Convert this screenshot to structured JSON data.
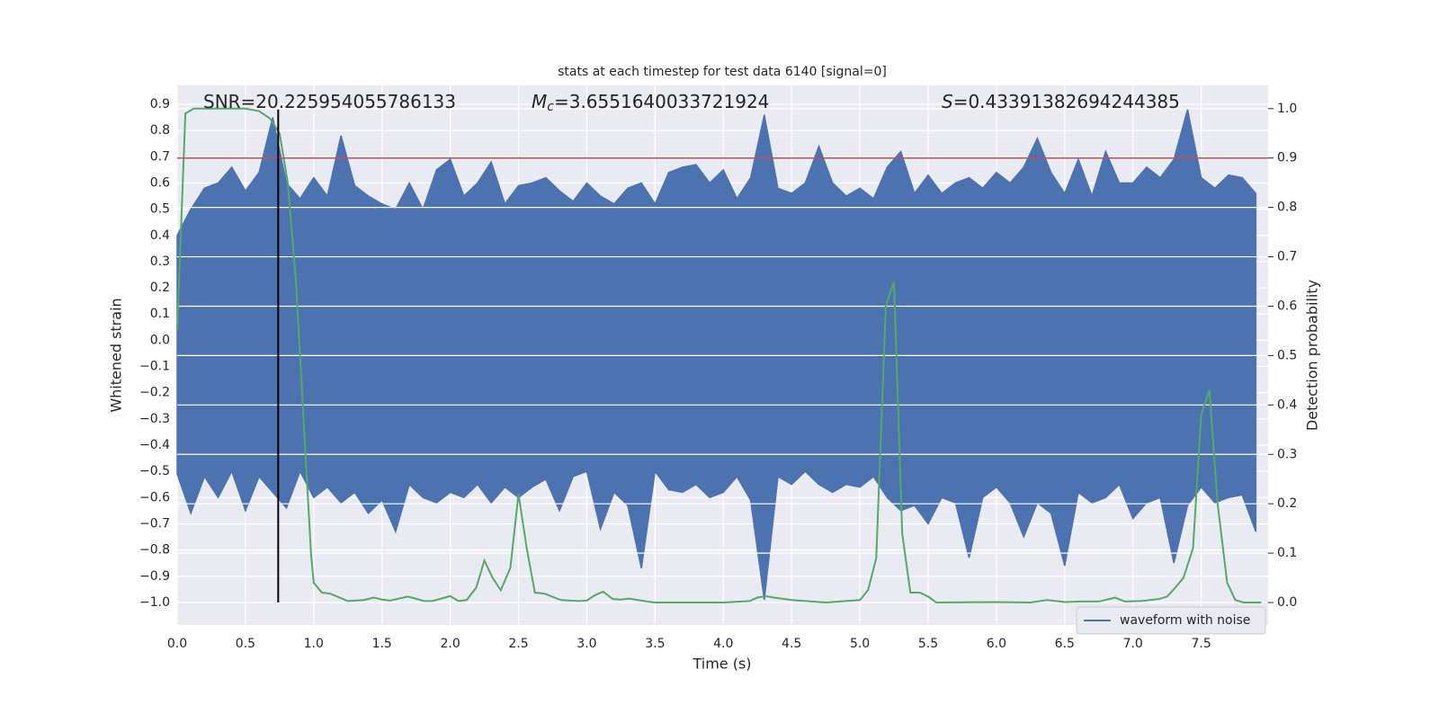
{
  "chart_data": {
    "type": "line",
    "title": "stats at each timestep for test data 6140 [signal=0]",
    "xlabel": "Time (s)",
    "ylabel": "Whitened strain",
    "y2label": "Detection probability",
    "annotations": [
      {
        "text": "SNR=20.225954055786133"
      },
      {
        "symbol": "M",
        "subscript": "c",
        "text": "=3.6551640033721924"
      },
      {
        "symbol": "S",
        "text": "=0.43391382694244385"
      }
    ],
    "xlim": [
      0,
      7.99
    ],
    "ylim": [
      -1.086,
      0.972
    ],
    "y2lim": [
      -0.0455,
      1.047
    ],
    "xticks": [
      {
        "value": 0,
        "label": "0.0"
      },
      0.5,
      {
        "value": 1,
        "label": "1.0"
      },
      1.5,
      {
        "value": 2,
        "label": "2.0"
      },
      2.5,
      {
        "value": 3,
        "label": "3.0"
      },
      3.5,
      {
        "value": 4,
        "label": "4.0"
      },
      4.5,
      {
        "value": 5,
        "label": "5.0"
      },
      5.5,
      {
        "value": 6,
        "label": "6.0"
      },
      6.5,
      {
        "value": 7,
        "label": "7.0"
      },
      7.5
    ],
    "yticks": [
      {
        "value": -1,
        "label": "−1.0"
      },
      {
        "value": -0.9,
        "label": "−0.9"
      },
      {
        "value": -0.8,
        "label": "−0.8"
      },
      {
        "value": -0.7,
        "label": "−0.7"
      },
      {
        "value": -0.6,
        "label": "−0.6"
      },
      {
        "value": -0.5,
        "label": "−0.5"
      },
      {
        "value": -0.4,
        "label": "−0.4"
      },
      {
        "value": -0.3,
        "label": "−0.3"
      },
      {
        "value": -0.2,
        "label": "−0.2"
      },
      {
        "value": -0.1,
        "label": "−0.1"
      },
      {
        "value": 0,
        "label": "0.0"
      },
      0.1,
      0.2,
      0.3,
      0.4,
      0.5,
      0.6,
      0.7,
      0.8,
      0.9
    ],
    "y2ticks": [
      {
        "value": 0,
        "label": "0.0"
      },
      0.1,
      0.2,
      0.3,
      0.4,
      0.5,
      0.6,
      0.7,
      0.8,
      0.9,
      {
        "value": 1,
        "label": "1.0"
      }
    ],
    "grid": true,
    "legend": "lower right",
    "series": [
      {
        "name": "waveform with noise",
        "color": "#4c72b0",
        "x": [
          0.0,
          0.1,
          0.2,
          0.3,
          0.4,
          0.5,
          0.6,
          0.7,
          0.8,
          0.9,
          1.0,
          1.1,
          1.2,
          1.3,
          1.4,
          1.5,
          1.6,
          1.7,
          1.8,
          1.9,
          2.0,
          2.1,
          2.2,
          2.3,
          2.4,
          2.5,
          2.6,
          2.7,
          2.8,
          2.9,
          3.0,
          3.1,
          3.2,
          3.3,
          3.4,
          3.5,
          3.6,
          3.7,
          3.8,
          3.9,
          4.0,
          4.1,
          4.2,
          4.3,
          4.4,
          4.5,
          4.6,
          4.7,
          4.8,
          4.9,
          5.0,
          5.1,
          5.2,
          5.3,
          5.4,
          5.5,
          5.6,
          5.7,
          5.8,
          5.9,
          6.0,
          6.1,
          6.2,
          6.3,
          6.4,
          6.5,
          6.6,
          6.7,
          6.8,
          6.9,
          7.0,
          7.1,
          7.2,
          7.3,
          7.4,
          7.5,
          7.6,
          7.7,
          7.8,
          7.9
        ],
        "max": [
          0.4,
          0.5,
          0.58,
          0.6,
          0.66,
          0.57,
          0.64,
          0.85,
          0.6,
          0.54,
          0.62,
          0.55,
          0.78,
          0.59,
          0.55,
          0.52,
          0.5,
          0.6,
          0.5,
          0.65,
          0.69,
          0.55,
          0.6,
          0.68,
          0.52,
          0.59,
          0.6,
          0.62,
          0.57,
          0.53,
          0.6,
          0.55,
          0.52,
          0.58,
          0.6,
          0.52,
          0.64,
          0.66,
          0.67,
          0.6,
          0.65,
          0.54,
          0.62,
          0.86,
          0.58,
          0.56,
          0.6,
          0.74,
          0.6,
          0.55,
          0.58,
          0.54,
          0.66,
          0.72,
          0.56,
          0.63,
          0.56,
          0.6,
          0.62,
          0.58,
          0.64,
          0.6,
          0.66,
          0.77,
          0.64,
          0.56,
          0.69,
          0.55,
          0.72,
          0.6,
          0.6,
          0.66,
          0.62,
          0.69,
          0.88,
          0.62,
          0.58,
          0.63,
          0.62,
          0.56
        ],
        "min": [
          -0.51,
          -0.66,
          -0.52,
          -0.6,
          -0.5,
          -0.65,
          -0.52,
          -0.58,
          -0.64,
          -0.5,
          -0.6,
          -0.56,
          -0.62,
          -0.58,
          -0.66,
          -0.61,
          -0.73,
          -0.55,
          -0.6,
          -0.62,
          -0.58,
          -0.6,
          -0.55,
          -0.62,
          -0.56,
          -0.6,
          -0.56,
          -0.53,
          -0.65,
          -0.52,
          -0.5,
          -0.72,
          -0.58,
          -0.63,
          -0.87,
          -0.5,
          -0.57,
          -0.58,
          -0.55,
          -0.6,
          -0.58,
          -0.52,
          -0.61,
          -0.99,
          -0.52,
          -0.55,
          -0.5,
          -0.55,
          -0.58,
          -0.55,
          -0.56,
          -0.52,
          -0.6,
          -0.65,
          -0.63,
          -0.7,
          -0.6,
          -0.62,
          -0.83,
          -0.6,
          -0.56,
          -0.62,
          -0.75,
          -0.62,
          -0.66,
          -0.86,
          -0.58,
          -0.62,
          -0.6,
          -0.55,
          -0.68,
          -0.62,
          -0.6,
          -0.85,
          -0.63,
          -0.56,
          -0.62,
          -0.6,
          -0.59,
          -0.73
        ]
      },
      {
        "color": "#55a868",
        "axis": "y2",
        "x": [
          0,
          0.06,
          0.12,
          0.3,
          0.5,
          0.6,
          0.68,
          0.75,
          0.81,
          0.87,
          0.94,
          0.98,
          1.0,
          1.06,
          1.12,
          1.25,
          1.37,
          1.44,
          1.5,
          1.56,
          1.69,
          1.81,
          1.87,
          2.0,
          2.06,
          2.12,
          2.19,
          2.25,
          2.31,
          2.37,
          2.44,
          2.5,
          2.56,
          2.62,
          2.69,
          2.81,
          2.94,
          3.0,
          3.06,
          3.12,
          3.19,
          3.25,
          3.31,
          3.44,
          3.5,
          4.0,
          4.19,
          4.25,
          4.31,
          4.37,
          4.5,
          4.75,
          5.0,
          5.06,
          5.12,
          5.19,
          5.25,
          5.31,
          5.37,
          5.44,
          5.5,
          5.56,
          6.0,
          6.25,
          6.37,
          6.5,
          6.62,
          6.75,
          6.87,
          6.94,
          7.06,
          7.19,
          7.25,
          7.31,
          7.37,
          7.44,
          7.5,
          7.56,
          7.62,
          7.69,
          7.75,
          7.81,
          7.94
        ],
        "values": [
          0.55,
          0.99,
          1.0,
          1.0,
          1.0,
          0.995,
          0.98,
          0.95,
          0.85,
          0.65,
          0.3,
          0.1,
          0.04,
          0.02,
          0.018,
          0.003,
          0.005,
          0.01,
          0.006,
          0.004,
          0.012,
          0.003,
          0.003,
          0.013,
          0.003,
          0.005,
          0.03,
          0.085,
          0.05,
          0.025,
          0.07,
          0.22,
          0.11,
          0.02,
          0.018,
          0.005,
          0.003,
          0.004,
          0.015,
          0.022,
          0.007,
          0.006,
          0.008,
          0.002,
          0.0,
          0.0,
          0.003,
          0.01,
          0.013,
          0.01,
          0.005,
          0.0,
          0.005,
          0.025,
          0.09,
          0.6,
          0.65,
          0.14,
          0.02,
          0.02,
          0.012,
          0.0,
          0.001,
          0.0,
          0.005,
          0.001,
          0.002,
          0.002,
          0.01,
          0.002,
          0.003,
          0.007,
          0.012,
          0.03,
          0.05,
          0.11,
          0.38,
          0.43,
          0.2,
          0.04,
          0.005,
          0.0,
          0.0
        ]
      }
    ],
    "threshold": {
      "axis": "y2",
      "value": 0.9,
      "color": "#c44e52"
    },
    "vline": {
      "x": 0.74,
      "ymin": -1.0,
      "ymax": 0.88,
      "color": "#000000"
    }
  }
}
